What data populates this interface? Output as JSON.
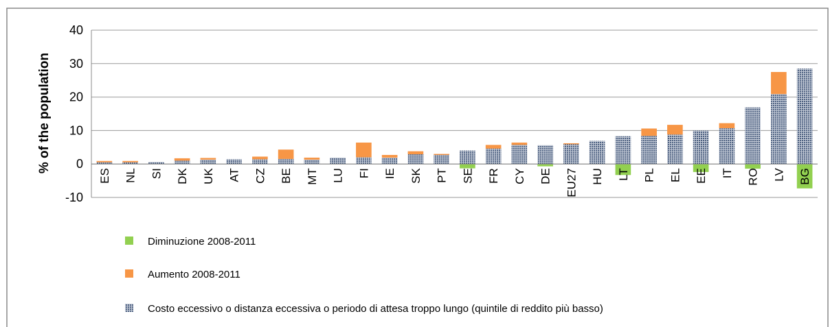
{
  "chart_data": {
    "type": "stacked-bar",
    "y_label": "% of the population",
    "categories": [
      "ES",
      "NL",
      "SI",
      "DK",
      "UK",
      "AT",
      "CZ",
      "BE",
      "MT",
      "LU",
      "FI",
      "IE",
      "SK",
      "PT",
      "SE",
      "FR",
      "CY",
      "DE",
      "EU27",
      "HU",
      "LT",
      "PL",
      "EL",
      "EE",
      "IT",
      "RO",
      "LV",
      "BG"
    ],
    "series": [
      {
        "name": "Diminuzione 2008-2011",
        "color": "#92d050",
        "values": [
          0,
          0,
          0,
          0,
          0,
          0,
          0,
          0,
          0,
          0,
          0,
          0,
          0,
          0,
          -1.3,
          0,
          0,
          -0.7,
          0,
          0,
          -3.3,
          0,
          0,
          -2.4,
          0,
          -1.4,
          0,
          -7.3
        ]
      },
      {
        "name": "Aumento 2008-2011",
        "color": "#f79646",
        "values": [
          0.4,
          0.4,
          0,
          0.7,
          0.5,
          0,
          0.8,
          2.8,
          0.6,
          0,
          4.4,
          0.8,
          0.9,
          0.3,
          0,
          1.1,
          0.7,
          0,
          0.3,
          0,
          0,
          2.2,
          2.9,
          0,
          1.5,
          0,
          6.6,
          0
        ]
      },
      {
        "name": "Costo eccessivo o distanza eccessiva o periodo di attesa troppo lungo (quintile di reddito più basso)",
        "color": "#7f8fa9",
        "values": [
          0.5,
          0.5,
          0.6,
          1.0,
          1.3,
          1.4,
          1.4,
          1.5,
          1.3,
          1.9,
          2.0,
          1.9,
          2.9,
          2.7,
          4.0,
          4.6,
          5.7,
          5.6,
          5.9,
          6.9,
          8.3,
          8.4,
          8.8,
          10.0,
          10.7,
          16.9,
          20.9,
          28.5
        ]
      }
    ],
    "ylim": [
      -10,
      40
    ],
    "yticks": [
      -10,
      0,
      10,
      20,
      30,
      40
    ],
    "grid": true
  }
}
